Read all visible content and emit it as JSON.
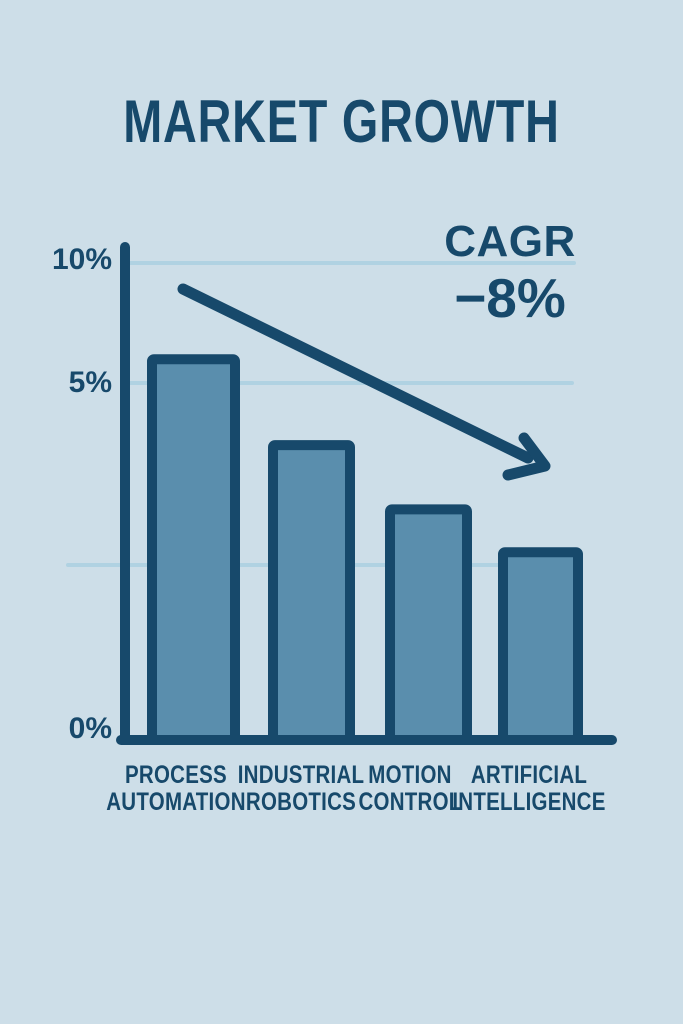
{
  "page_title": "MARKET GROWTH",
  "annotation": {
    "label": "CAGR",
    "value": "−8%"
  },
  "y_axis": {
    "tick_labels": [
      "10%",
      "5%",
      "0%"
    ]
  },
  "chart_data": {
    "type": "bar",
    "title": "MARKET GROWTH",
    "categories": [
      "PROCESS AUTOMATION",
      "INDUSTRIAL ROBOTICS",
      "MOTION CONTROL",
      "ARTIFICIAL INTELLIGENCE"
    ],
    "values": [
      6.2,
      4.2,
      3.3,
      2.7
    ],
    "unit": "%",
    "xlabel": "",
    "ylabel": "",
    "ylim": [
      0,
      10
    ],
    "y_ticks": [
      0,
      5,
      10
    ],
    "y_tick_labels": [
      "0%",
      "5%",
      "10%"
    ],
    "grid": "horizontal",
    "legend_position": "none",
    "annotations": [
      {
        "type": "text",
        "text": "CAGR −8%",
        "position": "top-right"
      },
      {
        "type": "trend-arrow",
        "direction": "down-right"
      }
    ]
  },
  "colors": {
    "background": "#cddee8",
    "ink": "#17496b",
    "bar_fill": "#5a8ead",
    "gridline": "#b0d2e2"
  }
}
